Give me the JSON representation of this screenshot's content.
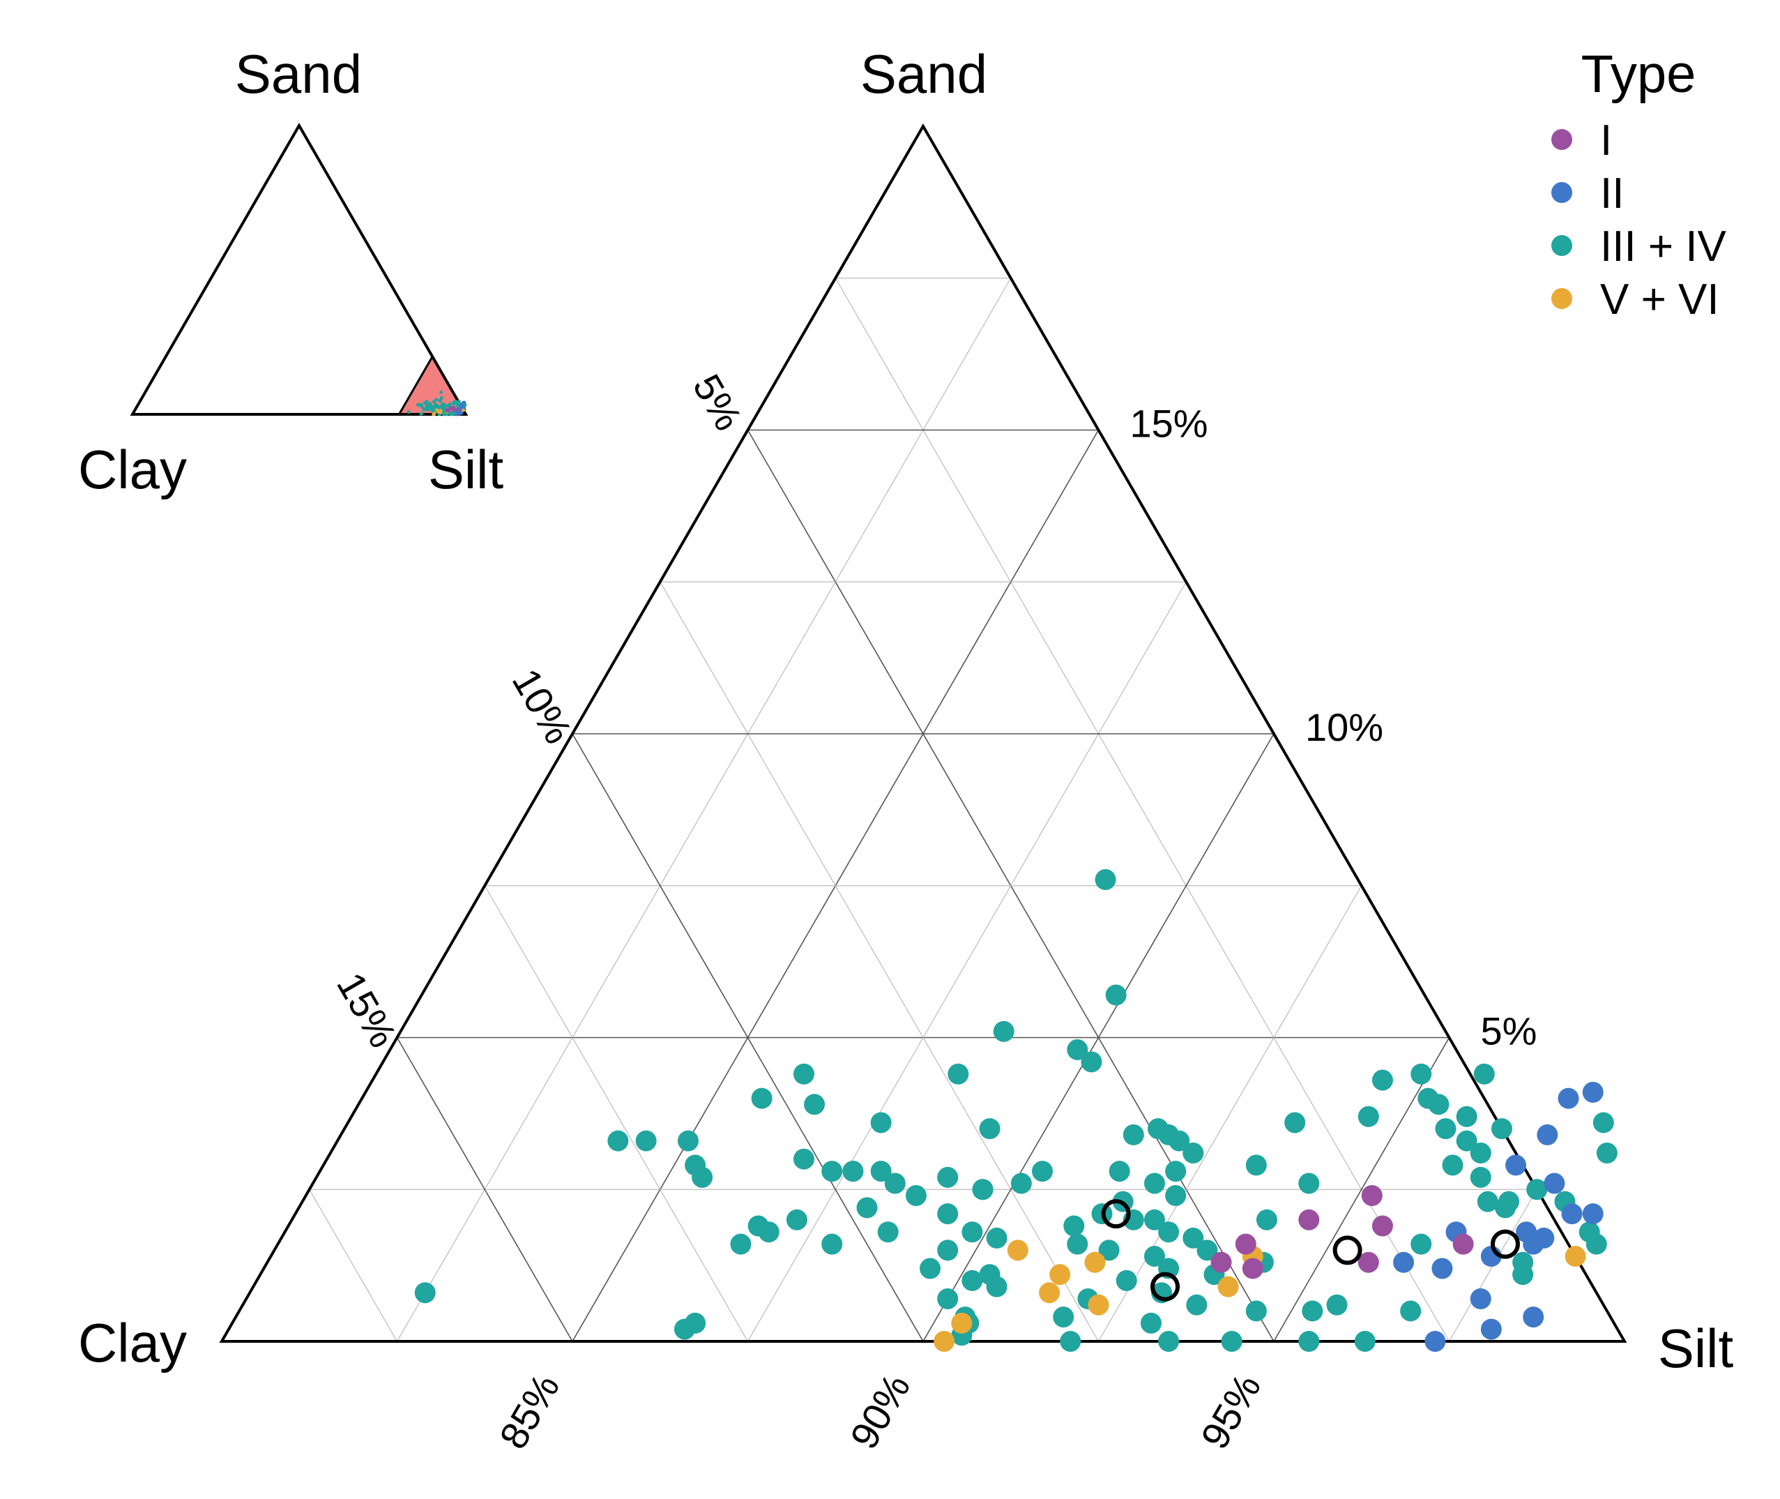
{
  "chart_data": {
    "type": "scatter",
    "subtype": "ternary",
    "title": "",
    "vertices": {
      "top": "Sand",
      "left": "Clay",
      "right": "Silt"
    },
    "inset": {
      "vertices": {
        "top": "Sand",
        "left": "Clay",
        "right": "Silt"
      },
      "zoom_region": {
        "sand_max": 20,
        "clay_max": 20,
        "fill_color": "#f28080"
      }
    },
    "axes": {
      "sand": {
        "min": 0,
        "max": 20,
        "ticks": [
          5,
          10,
          15
        ],
        "tick_labels": [
          "5%",
          "10%",
          "15%"
        ]
      },
      "clay": {
        "min": 0,
        "max": 20,
        "ticks": [
          5,
          10,
          15
        ],
        "tick_labels": [
          "5%",
          "10%",
          "15%"
        ]
      },
      "silt": {
        "min": 80,
        "max": 100,
        "ticks": [
          85,
          90,
          95
        ],
        "tick_labels": [
          "85%",
          "90%",
          "95%"
        ]
      }
    },
    "grid": {
      "major_step": 5,
      "minor_step": 2.5
    },
    "legend": {
      "title": "Type",
      "position": "top-right",
      "entries": [
        {
          "name": "I",
          "color": "#9b4f9f"
        },
        {
          "name": "II",
          "color": "#3f78c9"
        },
        {
          "name": "III + IV",
          "color": "#20a59f"
        },
        {
          "name": "V + VI",
          "color": "#e9aa35"
        }
      ]
    },
    "series": [
      {
        "name": "I",
        "color": "#9b4f9f",
        "points": [
          {
            "silt": 95.2,
            "sand": 2.4
          },
          {
            "silt": 94.5,
            "sand": 2.0
          },
          {
            "silt": 93.8,
            "sand": 1.6
          },
          {
            "silt": 94.1,
            "sand": 1.2
          },
          {
            "silt": 93.6,
            "sand": 1.3
          },
          {
            "silt": 95.6,
            "sand": 1.9
          },
          {
            "silt": 95.7,
            "sand": 1.3
          },
          {
            "silt": 96.9,
            "sand": 1.6
          }
        ]
      },
      {
        "name": "II",
        "color": "#3f78c9",
        "points": [
          {
            "silt": 97.2,
            "sand": 4.0
          },
          {
            "silt": 97.5,
            "sand": 4.1
          },
          {
            "silt": 97.2,
            "sand": 3.4
          },
          {
            "silt": 97.0,
            "sand": 2.9
          },
          {
            "silt": 97.7,
            "sand": 2.6
          },
          {
            "silt": 98.5,
            "sand": 2.1
          },
          {
            "silt": 98.2,
            "sand": 2.1
          },
          {
            "silt": 96.7,
            "sand": 1.8
          },
          {
            "silt": 97.7,
            "sand": 1.8
          },
          {
            "silt": 98.0,
            "sand": 1.7
          },
          {
            "silt": 97.4,
            "sand": 1.4
          },
          {
            "silt": 96.2,
            "sand": 1.3
          },
          {
            "silt": 96.8,
            "sand": 1.2
          },
          {
            "silt": 97.9,
            "sand": 1.6
          },
          {
            "silt": 97.6,
            "sand": 0.7
          },
          {
            "silt": 98.5,
            "sand": 0.4
          },
          {
            "silt": 98.0,
            "sand": 0.2
          },
          {
            "silt": 97.3,
            "sand": 0.0
          }
        ]
      },
      {
        "name": "III + IV",
        "color": "#20a59f",
        "points": [
          {
            "silt": 88.8,
            "sand": 7.6
          },
          {
            "silt": 89.9,
            "sand": 5.7
          },
          {
            "silt": 89.8,
            "sand": 4.8
          },
          {
            "silt": 88.6,
            "sand": 5.1
          },
          {
            "silt": 90.1,
            "sand": 4.6
          },
          {
            "silt": 86.1,
            "sand": 4.4
          },
          {
            "silt": 88.3,
            "sand": 4.4
          },
          {
            "silt": 85.7,
            "sand": 4.0
          },
          {
            "silt": 86.5,
            "sand": 3.9
          },
          {
            "silt": 87.6,
            "sand": 3.6
          },
          {
            "silt": 89.2,
            "sand": 3.5
          },
          {
            "silt": 84.0,
            "sand": 3.3
          },
          {
            "silt": 84.4,
            "sand": 3.3
          },
          {
            "silt": 85.0,
            "sand": 3.3
          },
          {
            "silt": 85.3,
            "sand": 2.9
          },
          {
            "silt": 85.5,
            "sand": 2.7
          },
          {
            "silt": 86.8,
            "sand": 3.0
          },
          {
            "silt": 87.3,
            "sand": 2.8
          },
          {
            "silt": 87.6,
            "sand": 2.8
          },
          {
            "silt": 88.0,
            "sand": 2.8
          },
          {
            "silt": 88.3,
            "sand": 2.6
          },
          {
            "silt": 88.1,
            "sand": 2.2
          },
          {
            "silt": 87.2,
            "sand": 2.0
          },
          {
            "silt": 86.7,
            "sand": 1.9
          },
          {
            "silt": 86.9,
            "sand": 1.8
          },
          {
            "silt": 86.6,
            "sand": 1.6
          },
          {
            "silt": 87.9,
            "sand": 1.6
          },
          {
            "silt": 88.6,
            "sand": 1.8
          },
          {
            "silt": 88.7,
            "sand": 2.4
          },
          {
            "silt": 89.3,
            "sand": 2.1
          },
          {
            "silt": 89.6,
            "sand": 2.5
          },
          {
            "silt": 89.0,
            "sand": 2.7
          },
          {
            "silt": 89.8,
            "sand": 1.8
          },
          {
            "silt": 90.2,
            "sand": 1.7
          },
          {
            "silt": 89.6,
            "sand": 1.5
          },
          {
            "silt": 89.5,
            "sand": 1.2
          },
          {
            "silt": 90.4,
            "sand": 1.1
          },
          {
            "silt": 90.6,
            "sand": 0.9
          },
          {
            "silt": 90.0,
            "sand": 0.7
          },
          {
            "silt": 90.4,
            "sand": 0.4
          },
          {
            "silt": 90.5,
            "sand": 0.3
          },
          {
            "silt": 90.5,
            "sand": 0.1
          },
          {
            "silt": 90.2,
            "sand": 1.0
          },
          {
            "silt": 89.6,
            "sand": 2.5
          },
          {
            "silt": 90.1,
            "sand": 2.6
          },
          {
            "silt": 90.3,
            "sand": 2.8
          },
          {
            "silt": 87.6,
            "sand": 2.8
          },
          {
            "silt": 91.3,
            "sand": 3.4
          },
          {
            "silt": 91.6,
            "sand": 3.5
          },
          {
            "silt": 91.8,
            "sand": 3.4
          },
          {
            "silt": 92.0,
            "sand": 3.3
          },
          {
            "silt": 92.3,
            "sand": 3.1
          },
          {
            "silt": 91.4,
            "sand": 2.8
          },
          {
            "silt": 92.0,
            "sand": 2.6
          },
          {
            "silt": 92.2,
            "sand": 2.8
          },
          {
            "silt": 92.4,
            "sand": 2.4
          },
          {
            "silt": 91.7,
            "sand": 2.3
          },
          {
            "silt": 91.5,
            "sand": 2.1
          },
          {
            "silt": 92.0,
            "sand": 2.0
          },
          {
            "silt": 92.3,
            "sand": 2.0
          },
          {
            "silt": 92.6,
            "sand": 1.8
          },
          {
            "silt": 91.2,
            "sand": 1.9
          },
          {
            "silt": 91.4,
            "sand": 1.6
          },
          {
            "silt": 91.9,
            "sand": 1.5
          },
          {
            "silt": 92.6,
            "sand": 1.4
          },
          {
            "silt": 93.0,
            "sand": 1.7
          },
          {
            "silt": 93.3,
            "sand": 1.5
          },
          {
            "silt": 92.9,
            "sand": 1.2
          },
          {
            "silt": 92.4,
            "sand": 1.0
          },
          {
            "silt": 93.0,
            "sand": 0.8
          },
          {
            "silt": 93.6,
            "sand": 0.6
          },
          {
            "silt": 92.0,
            "sand": 0.7
          },
          {
            "silt": 91.8,
            "sand": 0.4
          },
          {
            "silt": 92.1,
            "sand": 0.0
          },
          {
            "silt": 93.5,
            "sand": 0.0
          },
          {
            "silt": 94.4,
            "sand": 0.0
          },
          {
            "silt": 94.5,
            "sand": 0.5
          },
          {
            "silt": 93.9,
            "sand": 2.0
          },
          {
            "silt": 94.2,
            "sand": 2.6
          },
          {
            "silt": 93.3,
            "sand": 2.9
          },
          {
            "silt": 93.5,
            "sand": 3.6
          },
          {
            "silt": 94.4,
            "sand": 4.3
          },
          {
            "silt": 94.5,
            "sand": 3.7
          },
          {
            "silt": 94.9,
            "sand": 4.4
          },
          {
            "silt": 95.2,
            "sand": 4.0
          },
          {
            "silt": 95.4,
            "sand": 3.9
          },
          {
            "silt": 95.7,
            "sand": 3.5
          },
          {
            "silt": 95.9,
            "sand": 3.7
          },
          {
            "silt": 95.8,
            "sand": 4.4
          },
          {
            "silt": 96.1,
            "sand": 3.3
          },
          {
            "silt": 96.4,
            "sand": 3.1
          },
          {
            "silt": 96.6,
            "sand": 2.7
          },
          {
            "silt": 96.9,
            "sand": 2.3
          },
          {
            "silt": 97.2,
            "sand": 2.2
          },
          {
            "silt": 97.5,
            "sand": 2.5
          },
          {
            "silt": 98.0,
            "sand": 2.3
          },
          {
            "silt": 97.9,
            "sand": 1.3
          },
          {
            "silt": 98.2,
            "sand": 3.1
          },
          {
            "silt": 98.0,
            "sand": 1.1
          },
          {
            "silt": 96.5,
            "sand": 3.5
          },
          {
            "silt": 96.1,
            "sand": 2.9
          },
          {
            "silt": 96.3,
            "sand": 1.6
          },
          {
            "silt": 96.3,
            "sand": 0.0
          },
          {
            "silt": 96.7,
            "sand": 0.5
          },
          {
            "silt": 95.3,
            "sand": 0.5
          },
          {
            "silt": 95.6,
            "sand": 0.6
          },
          {
            "silt": 95.5,
            "sand": 0.0
          },
          {
            "silt": 94.2,
            "sand": 1.3
          },
          {
            "silt": 93.6,
            "sand": 1.1
          },
          {
            "silt": 93.1,
            "sand": 0.3
          },
          {
            "silt": 98.6,
            "sand": 1.8
          },
          {
            "silt": 98.8,
            "sand": 1.6
          },
          {
            "silt": 97.2,
            "sand": 2.3
          },
          {
            "silt": 86.5,
            "sand": 0.2
          },
          {
            "silt": 86.6,
            "sand": 0.3
          },
          {
            "silt": 82.5,
            "sand": 0.8
          },
          {
            "silt": 97.9,
            "sand": 3.6
          }
        ]
      },
      {
        "name": "V + VI",
        "color": "#e9aa35",
        "points": [
          {
            "silt": 90.6,
            "sand": 1.5
          },
          {
            "silt": 91.4,
            "sand": 1.1
          },
          {
            "silt": 91.4,
            "sand": 0.8
          },
          {
            "silt": 91.8,
            "sand": 1.3
          },
          {
            "silt": 92.2,
            "sand": 0.6
          },
          {
            "silt": 94.0,
            "sand": 1.4
          },
          {
            "silt": 93.9,
            "sand": 0.9
          },
          {
            "silt": 90.4,
            "sand": 0.3
          },
          {
            "silt": 90.3,
            "sand": 0.0
          },
          {
            "silt": 98.6,
            "sand": 1.4
          }
        ]
      }
    ],
    "highlighted_points": [
      {
        "silt": 91.7,
        "sand": 2.1
      },
      {
        "silt": 93.0,
        "sand": 0.9
      },
      {
        "silt": 95.3,
        "sand": 1.5
      },
      {
        "silt": 97.5,
        "sand": 1.6
      }
    ]
  }
}
